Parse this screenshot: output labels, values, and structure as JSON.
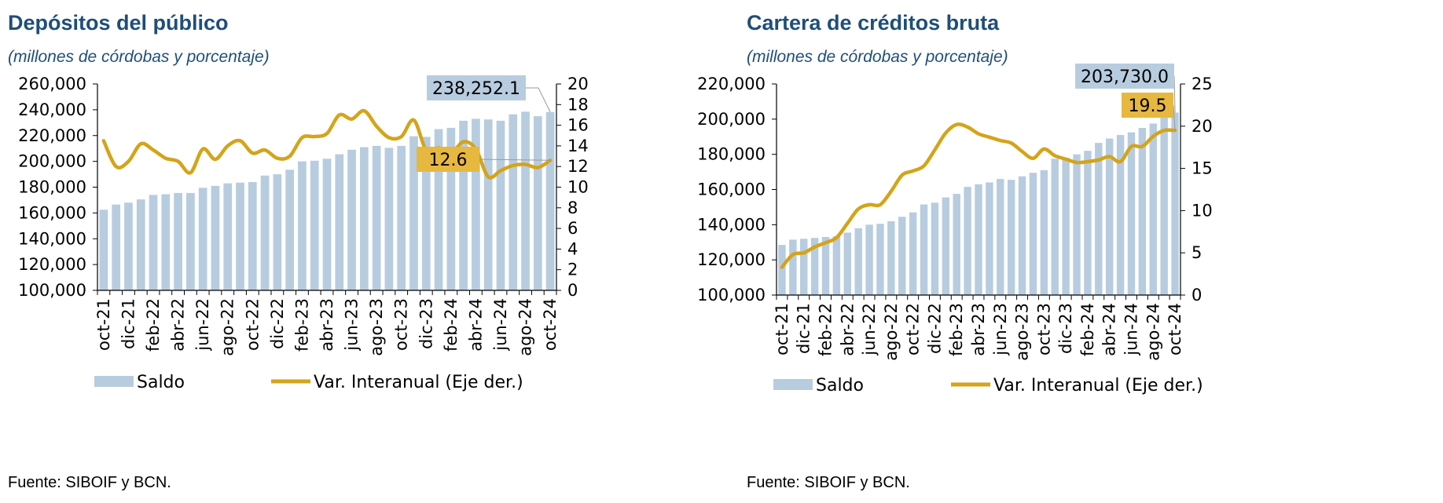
{
  "chart_data": [
    {
      "type": "bar",
      "title": "Depósitos del público",
      "subtitle": "(millones de córdobas y porcentaje)",
      "source": "Fuente: SIBOIF y BCN.",
      "x_tick_labels": [
        "oct-21",
        "dic-21",
        "feb-22",
        "abr-22",
        "jun-22",
        "ago-22",
        "oct-22",
        "dic-22",
        "feb-23",
        "abr-23",
        "jun-23",
        "ago-23",
        "oct-23",
        "dic-23",
        "feb-24",
        "abr-24",
        "jun-24",
        "ago-24",
        "oct-24"
      ],
      "ylim": [
        100000,
        260000
      ],
      "y_ticks": [
        100000,
        120000,
        140000,
        160000,
        180000,
        200000,
        220000,
        240000,
        260000
      ],
      "y_tick_labels": [
        "100,000",
        "120,000",
        "140,000",
        "160,000",
        "180,000",
        "200,000",
        "220,000",
        "240,000",
        "260,000"
      ],
      "y2lim": [
        0,
        20
      ],
      "y2_ticks": [
        0,
        2,
        4,
        6,
        8,
        10,
        12,
        14,
        16,
        18,
        20
      ],
      "y2_tick_labels": [
        "0",
        "2",
        "4",
        "6",
        "8",
        "10",
        "12",
        "14",
        "16",
        "18",
        "20"
      ],
      "legend_placement": "bottom",
      "series": [
        {
          "name": "Saldo",
          "type": "bar",
          "axis": "left",
          "color": "#b8cce0",
          "values": [
            162500,
            166500,
            168000,
            170500,
            174000,
            174500,
            175500,
            175500,
            179500,
            181000,
            183000,
            183500,
            184000,
            189000,
            190000,
            193500,
            200000,
            200500,
            202000,
            205500,
            209000,
            211000,
            212000,
            210500,
            212000,
            219500,
            219000,
            225000,
            226000,
            231500,
            233000,
            232500,
            231500,
            236500,
            238500,
            235000,
            238252.1
          ]
        },
        {
          "name": "Var. Interanual (Eje der.)",
          "type": "line",
          "axis": "right",
          "color": "#d4a419",
          "values": [
            14.5,
            12.0,
            12.5,
            14.2,
            13.6,
            12.8,
            12.5,
            11.4,
            13.7,
            12.7,
            14.0,
            14.5,
            13.3,
            13.6,
            12.8,
            13.0,
            14.8,
            14.9,
            15.2,
            17.0,
            16.6,
            17.4,
            15.9,
            14.8,
            14.9,
            16.5,
            13.6,
            13.8,
            13.3,
            14.4,
            13.7,
            11.0,
            11.6,
            12.1,
            12.2,
            11.9,
            12.6
          ]
        }
      ],
      "annotations": [
        {
          "text": "238,252.1",
          "series": "Saldo",
          "color": "#b8cce0"
        },
        {
          "text": "12.6",
          "series": "Var. Interanual (Eje der.)",
          "color": "#e6b840"
        }
      ]
    },
    {
      "type": "bar",
      "title": "Cartera de créditos bruta",
      "subtitle": "(millones de córdobas y porcentaje)",
      "source": "Fuente: SIBOIF y BCN.",
      "x_tick_labels": [
        "oct-21",
        "dic-21",
        "feb-22",
        "abr-22",
        "jun-22",
        "ago-22",
        "oct-22",
        "dic-22",
        "feb-23",
        "abr-23",
        "jun-23",
        "ago-23",
        "oct-23",
        "dic-23",
        "feb-24",
        "abr-24",
        "jun-24",
        "ago-24",
        "oct-24"
      ],
      "ylim": [
        100000,
        220000
      ],
      "y_ticks": [
        100000,
        120000,
        140000,
        160000,
        180000,
        200000,
        220000
      ],
      "y_tick_labels": [
        "100,000",
        "120,000",
        "140,000",
        "160,000",
        "180,000",
        "200,000",
        "220,000"
      ],
      "y2lim": [
        0,
        25
      ],
      "y2_ticks": [
        0,
        5,
        10,
        15,
        20,
        25
      ],
      "y2_tick_labels": [
        "0",
        "5",
        "10",
        "15",
        "20",
        "25"
      ],
      "legend_placement": "bottom",
      "series": [
        {
          "name": "Saldo",
          "type": "bar",
          "axis": "left",
          "color": "#b8cce0",
          "values": [
            128500,
            131500,
            132000,
            132500,
            133000,
            133500,
            135500,
            138000,
            140000,
            140500,
            142000,
            144500,
            147000,
            151500,
            152500,
            155500,
            157500,
            161500,
            163000,
            164000,
            166000,
            165500,
            167500,
            169500,
            171000,
            177500,
            178000,
            180000,
            182000,
            186500,
            189000,
            191000,
            192500,
            195000,
            197500,
            201000,
            203730.0
          ]
        },
        {
          "name": "Var. Interanual (Eje der.)",
          "type": "line",
          "axis": "right",
          "color": "#d4a419",
          "values": [
            3.3,
            4.8,
            5.0,
            5.7,
            6.2,
            6.8,
            8.5,
            10.2,
            10.7,
            10.7,
            12.3,
            14.2,
            14.7,
            15.3,
            17.2,
            19.2,
            20.2,
            19.9,
            19.1,
            18.7,
            18.3,
            18.0,
            17.0,
            16.2,
            17.3,
            16.5,
            16.1,
            15.7,
            15.8,
            16.0,
            16.4,
            15.8,
            17.6,
            17.6,
            18.8,
            19.5,
            19.5
          ]
        }
      ],
      "annotations": [
        {
          "text": "203,730.0",
          "series": "Saldo",
          "color": "#b8cce0"
        },
        {
          "text": "19.5",
          "series": "Var. Interanual (Eje der.)",
          "color": "#e6b840"
        }
      ]
    }
  ]
}
